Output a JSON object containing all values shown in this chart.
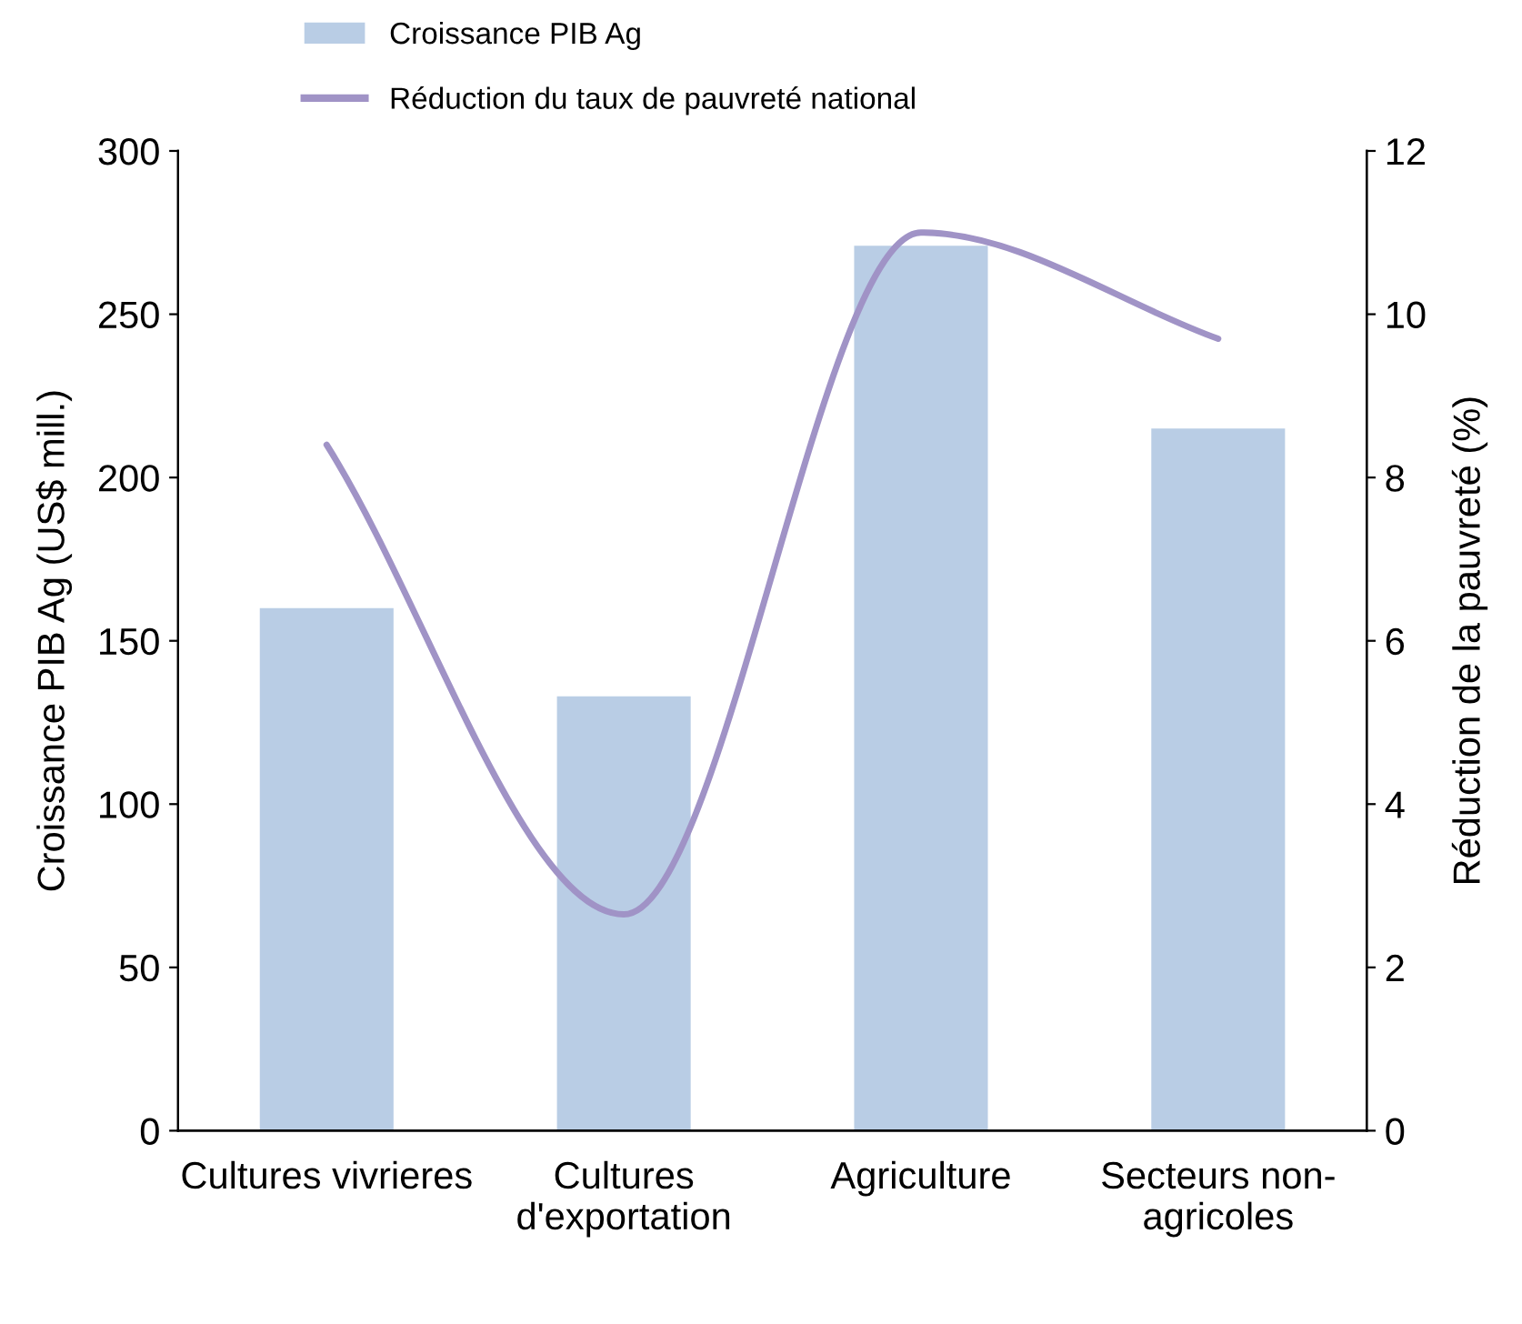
{
  "chart_data": {
    "type": "bar",
    "ylabel": "Croissance PIB Ag (US$ mill.)",
    "y2label": "Réduction de la pauvreté (%)",
    "categories": [
      "Cultures vivrieres",
      "Cultures\nd'exportation",
      "Agriculture",
      "Secteurs non-\nagricoles"
    ],
    "series": [
      {
        "name": "Croissance PIB Ag",
        "color": "#b9cde5",
        "values": [
          160,
          133,
          271,
          215
        ]
      },
      {
        "name": "Réduction du taux de pauvreté national",
        "type": "line",
        "axis": "y2",
        "color": "#a093c6",
        "values": [
          8.4,
          2.65,
          11.0,
          9.7
        ]
      }
    ],
    "ylim": [
      0,
      300
    ],
    "yticks": [
      0,
      50,
      100,
      150,
      200,
      250,
      300
    ],
    "y2lim": [
      0,
      12
    ],
    "y2ticks": [
      0,
      2,
      4,
      6,
      8,
      10,
      12
    ],
    "grid": false,
    "legend": "top",
    "marker": "none",
    "line_style": "solid"
  }
}
